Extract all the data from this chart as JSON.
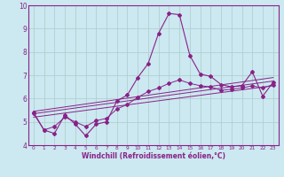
{
  "xlabel": "Windchill (Refroidissement éolien,°C)",
  "bg_color": "#cce8f0",
  "line_color": "#882288",
  "grid_color": "#aacccc",
  "xlim": [
    -0.5,
    23.5
  ],
  "ylim": [
    4,
    10
  ],
  "yticks": [
    4,
    5,
    6,
    7,
    8,
    9,
    10
  ],
  "xticks": [
    0,
    1,
    2,
    3,
    4,
    5,
    6,
    7,
    8,
    9,
    10,
    11,
    12,
    13,
    14,
    15,
    16,
    17,
    18,
    19,
    20,
    21,
    22,
    23
  ],
  "line_main": {
    "x": [
      0,
      1,
      2,
      3,
      4,
      5,
      6,
      7,
      8,
      9,
      10,
      11,
      12,
      13,
      14,
      15,
      16,
      17,
      18,
      19,
      20,
      21,
      22,
      23
    ],
    "y": [
      5.4,
      4.65,
      4.5,
      5.3,
      4.9,
      4.4,
      4.9,
      5.0,
      5.9,
      6.15,
      6.9,
      7.5,
      8.8,
      9.65,
      9.6,
      7.85,
      7.05,
      6.95,
      6.6,
      6.5,
      6.55,
      7.15,
      6.1,
      6.7
    ]
  },
  "line_secondary": {
    "x": [
      0,
      1,
      2,
      3,
      4,
      5,
      6,
      7,
      8,
      9,
      10,
      11,
      12,
      13,
      14,
      15,
      16,
      17,
      18,
      19,
      20,
      21,
      22,
      23
    ],
    "y": [
      5.35,
      4.65,
      4.8,
      5.2,
      5.0,
      4.8,
      5.05,
      5.15,
      5.55,
      5.75,
      6.05,
      6.3,
      6.45,
      6.65,
      6.8,
      6.65,
      6.55,
      6.5,
      6.35,
      6.4,
      6.45,
      6.55,
      6.45,
      6.6
    ]
  },
  "straight_lines": [
    {
      "x": [
        0,
        23
      ],
      "y": [
        5.2,
        6.55
      ]
    },
    {
      "x": [
        0,
        23
      ],
      "y": [
        5.35,
        6.75
      ]
    },
    {
      "x": [
        0,
        23
      ],
      "y": [
        5.45,
        6.9
      ]
    }
  ]
}
